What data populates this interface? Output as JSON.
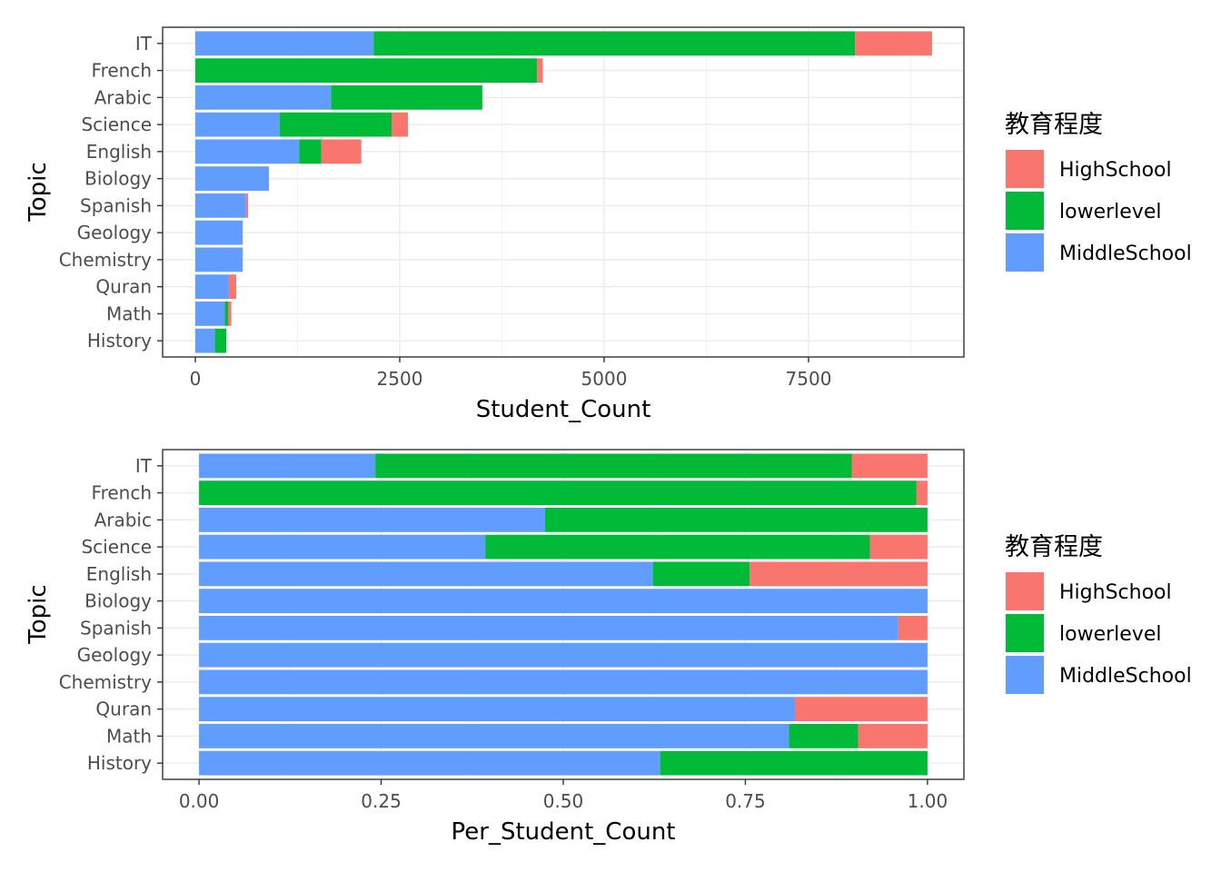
{
  "chart_data": [
    {
      "type": "bar",
      "orientation": "horizontal",
      "stacked": true,
      "categories": [
        "IT",
        "French",
        "Arabic",
        "Science",
        "English",
        "Biology",
        "Spanish",
        "Geology",
        "Chemistry",
        "Quran",
        "Math",
        "History"
      ],
      "series": [
        {
          "name": "MiddleSchool",
          "color": "#619CFF",
          "values": [
            2180,
            0,
            1660,
            1030,
            1270,
            900,
            620,
            580,
            580,
            410,
            360,
            240
          ]
        },
        {
          "name": "lowerlevel",
          "color": "#00BA38",
          "values": [
            5890,
            4180,
            1850,
            1370,
            270,
            0,
            0,
            0,
            0,
            0,
            40,
            140
          ]
        },
        {
          "name": "HighSchool",
          "color": "#F8766D",
          "values": [
            940,
            70,
            0,
            200,
            490,
            0,
            25,
            0,
            0,
            90,
            40,
            0
          ]
        }
      ],
      "xlabel": "Student_Count",
      "ylabel": "Topic",
      "xlim": [
        -400,
        9400
      ],
      "xticks": [
        0,
        2500,
        5000,
        7500
      ],
      "xtick_labels": [
        "0",
        "2500",
        "5000",
        "7500"
      ],
      "grid": true,
      "legend": {
        "title": "教育程度",
        "position": "right",
        "entries": [
          "HighSchool",
          "lowerlevel",
          "MiddleSchool"
        ]
      }
    },
    {
      "type": "bar",
      "orientation": "horizontal",
      "stacked": true,
      "categories": [
        "IT",
        "French",
        "Arabic",
        "Science",
        "English",
        "Biology",
        "Spanish",
        "Geology",
        "Chemistry",
        "Quran",
        "Math",
        "History"
      ],
      "series": [
        {
          "name": "MiddleSchool",
          "color": "#619CFF",
          "values": [
            0.242,
            0,
            0.475,
            0.393,
            0.623,
            1.0,
            0.96,
            1.0,
            1.0,
            0.818,
            0.81,
            0.633
          ]
        },
        {
          "name": "lowerlevel",
          "color": "#00BA38",
          "values": [
            0.654,
            0.985,
            0.525,
            0.528,
            0.133,
            0,
            0,
            0,
            0,
            0,
            0.095,
            0.367
          ]
        },
        {
          "name": "HighSchool",
          "color": "#F8766D",
          "values": [
            0.104,
            0.015,
            0,
            0.079,
            0.244,
            0,
            0.04,
            0,
            0,
            0.182,
            0.095,
            0
          ]
        }
      ],
      "xlabel": "Per_Student_Count",
      "ylabel": "Topic",
      "xlim": [
        -0.05,
        1.05
      ],
      "xticks": [
        0,
        0.25,
        0.5,
        0.75,
        1.0
      ],
      "xtick_labels": [
        "0.00",
        "0.25",
        "0.50",
        "0.75",
        "1.00"
      ],
      "grid": true,
      "legend": {
        "title": "教育程度",
        "position": "right",
        "entries": [
          "HighSchool",
          "lowerlevel",
          "MiddleSchool"
        ]
      }
    }
  ]
}
